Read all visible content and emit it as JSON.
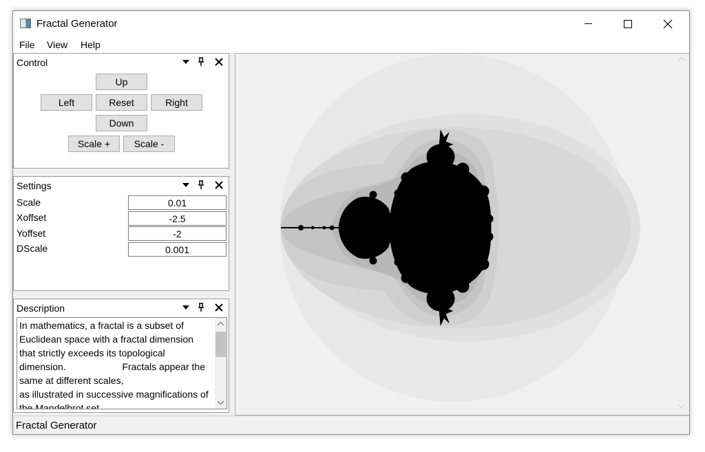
{
  "window": {
    "title": "Fractal Generator",
    "icon": "fractal-app-icon"
  },
  "menu": {
    "items": [
      "File",
      "View",
      "Help"
    ]
  },
  "control_panel": {
    "title": "Control",
    "buttons": {
      "up": "Up",
      "left": "Left",
      "reset": "Reset",
      "right": "Right",
      "down": "Down",
      "scale_plus": "Scale +",
      "scale_minus": "Scale -"
    }
  },
  "settings_panel": {
    "title": "Settings",
    "rows": [
      {
        "label": "Scale",
        "value": "0.01"
      },
      {
        "label": "Xoffset",
        "value": "-2.5"
      },
      {
        "label": "Yoffset",
        "value": "-2"
      },
      {
        "label": "DScale",
        "value": "0.001"
      }
    ]
  },
  "description_panel": {
    "title": "Description",
    "text": "In mathematics, a fractal is a subset of Euclidean space with a fractal dimension that strictly exceeds its topological dimension.                     Fractals appear the same at different scales,\nas illustrated in successive magnifications of the Mandelbrot set."
  },
  "canvas": {
    "background": "#f0f0f0",
    "band_colors": [
      "#e8e8e8",
      "#e0e0e0",
      "#d8d8d8",
      "#cfcfcf",
      "#c4c4c4",
      "#b8b8b8",
      "#a8a8a8"
    ],
    "set_color": "#000000"
  },
  "status": {
    "text": "Fractal Generator"
  }
}
